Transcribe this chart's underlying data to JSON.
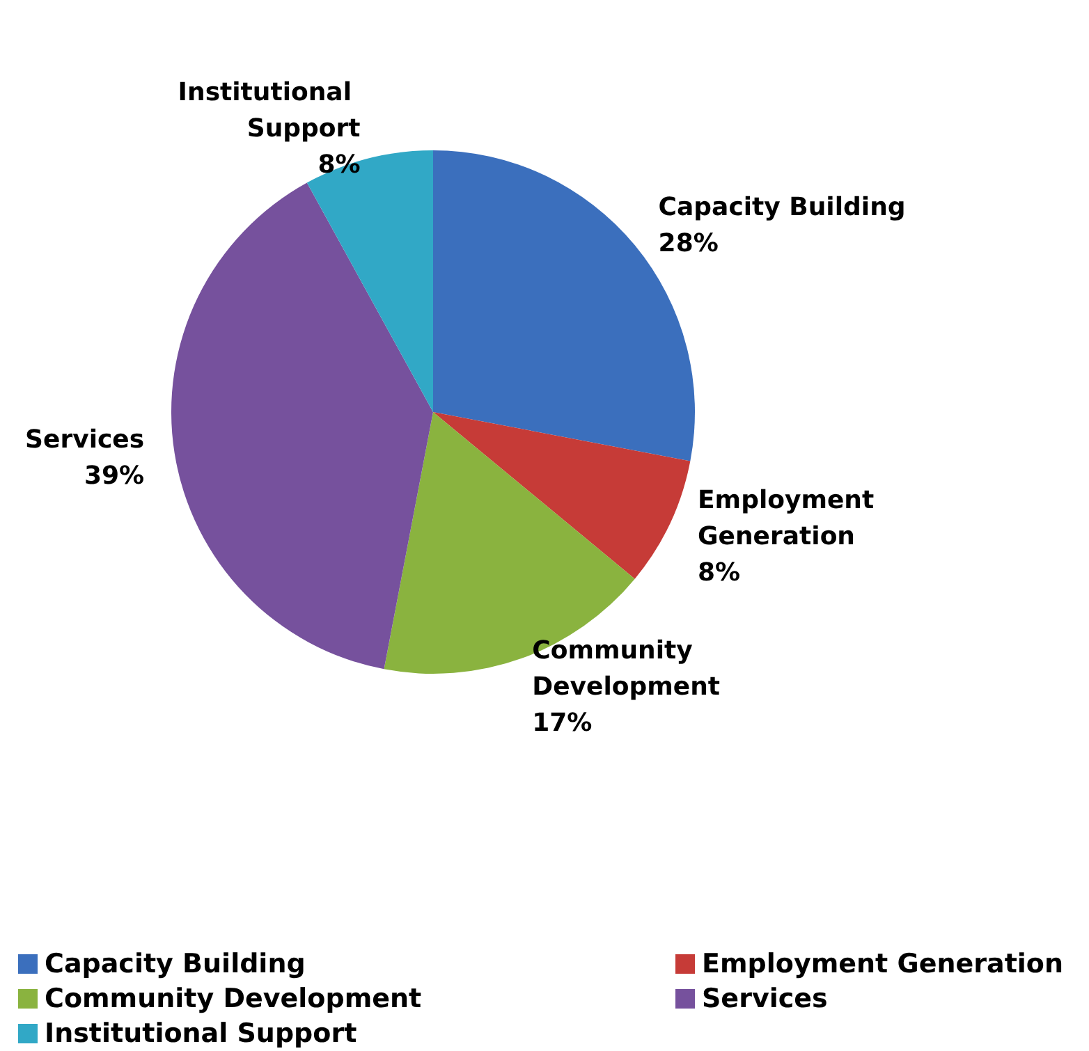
{
  "chart_data": {
    "type": "pie",
    "categories": [
      "Capacity Building",
      "Employment Generation",
      "Community Development",
      "Services",
      "Institutional Support"
    ],
    "values": [
      28,
      8,
      17,
      39,
      8
    ],
    "value_labels": [
      "28%",
      "8%",
      "17%",
      "39%",
      "8%"
    ],
    "colors": [
      "#3b6fbd",
      "#c63b37",
      "#8ab33f",
      "#76519d",
      "#31a8c6"
    ],
    "legend": "bottom"
  }
}
